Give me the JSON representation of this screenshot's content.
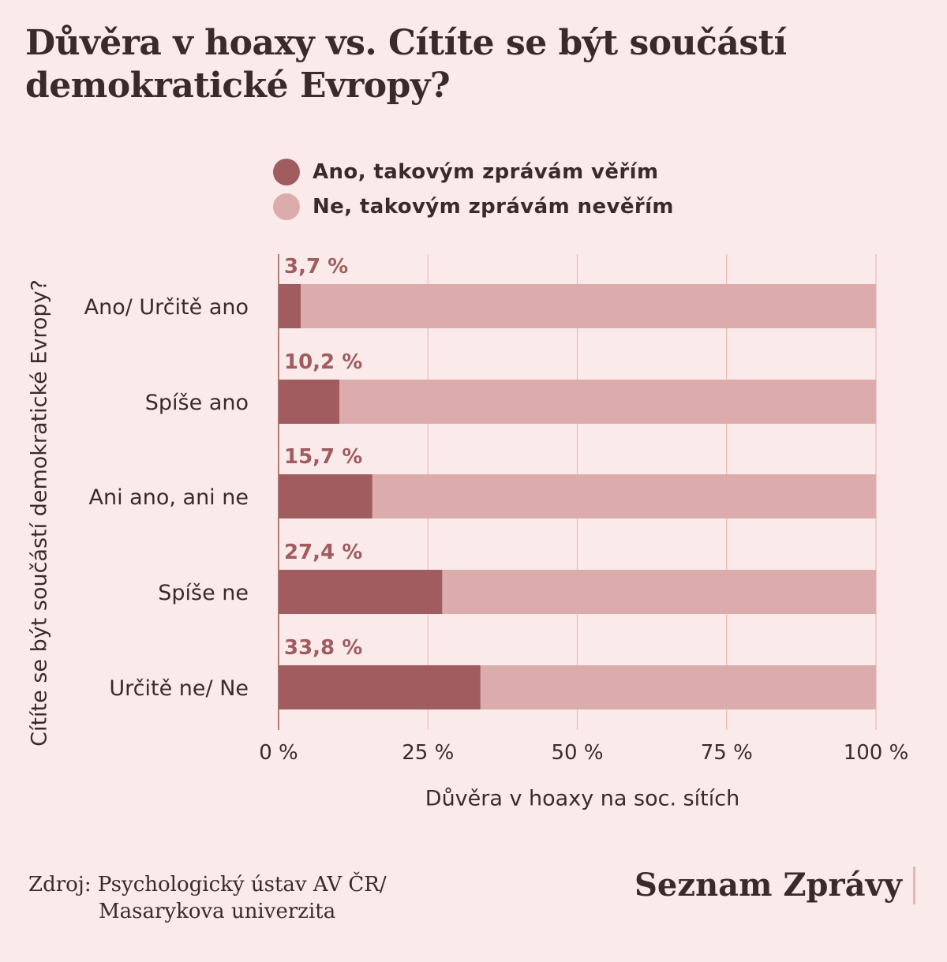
{
  "title": "Důvěra v hoaxy vs. Cítíte se být součástí demokratické Evropy?",
  "legend": [
    {
      "label": "Ano, takovým zprávám věřím",
      "color": "#a05c5e"
    },
    {
      "label": "Ne, takovým zprávám nevěřím",
      "color": "#dcacad"
    }
  ],
  "chart_data": {
    "type": "bar",
    "orientation": "horizontal",
    "stacked": true,
    "title": "Důvěra v hoaxy vs. Cítíte se být součástí demokratické Evropy?",
    "xlabel": "Důvěra v hoaxy na soc. sítích",
    "ylabel": "Cítíte se být součástí demokratické Evropy?",
    "xlim": [
      0,
      100
    ],
    "x_ticks": [
      "0 %",
      "25 %",
      "50 %",
      "75 %",
      "100 %"
    ],
    "x_tick_values": [
      0,
      25,
      50,
      75,
      100
    ],
    "grid": true,
    "legend_position": "top",
    "categories": [
      "Ano/ Určitě ano",
      "Spíše ano",
      "Ani ano, ani ne",
      "Spíše ne",
      "Určitě ne/ Ne"
    ],
    "series": [
      {
        "name": "Ano, takovým zprávám věřím",
        "values": [
          3.7,
          10.2,
          15.7,
          27.4,
          33.8
        ],
        "color": "#a05c5e"
      },
      {
        "name": "Ne, takovým zprávám nevěřím",
        "values": [
          96.3,
          89.8,
          84.3,
          72.6,
          66.2
        ],
        "color": "#dcacad"
      }
    ],
    "data_labels": [
      "3,7 %",
      "10,2 %",
      "15,7 %",
      "27,4 %",
      "33,8 %"
    ]
  },
  "source": {
    "line1": "Zdroj: Psychologický ústav AV ČR/",
    "line2": "Masarykova univerzita"
  },
  "brand": "Seznam Zprávy"
}
